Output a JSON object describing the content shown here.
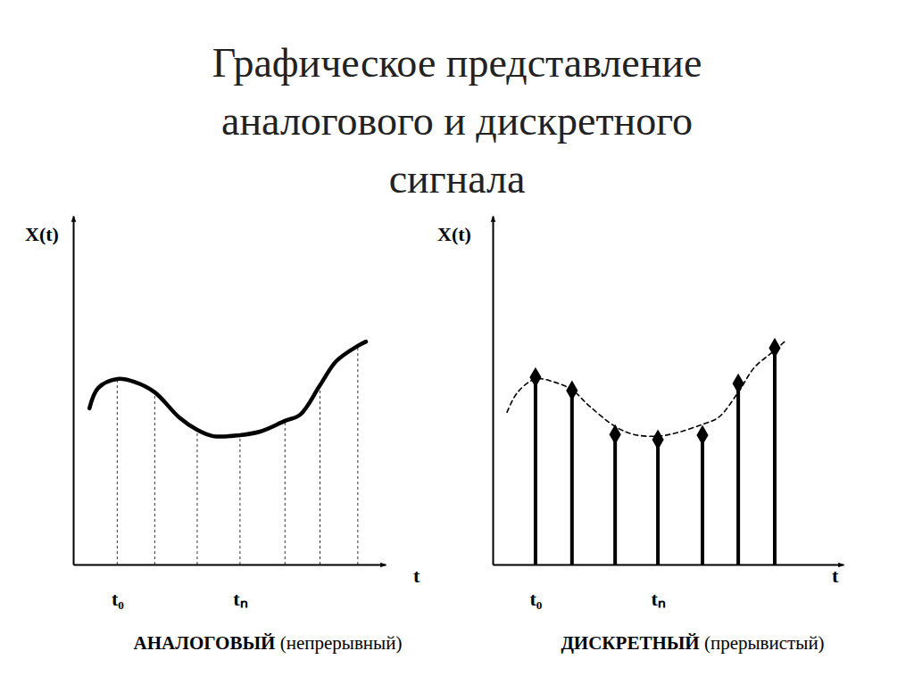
{
  "title": [
    "Графическое представление",
    "аналогового и дискретного",
    "сигнала"
  ],
  "chart_data": [
    {
      "type": "line",
      "x_label": "t",
      "y_label": "X(t)",
      "caption": "АНАЛОГОВЫЙ (непрерывный)",
      "xlim": [
        0,
        100
      ],
      "ylim": [
        0,
        100
      ],
      "xticks": [
        {
          "value": 14.1,
          "label": "t₀"
        },
        {
          "value": 53.4,
          "label": "tₙ"
        }
      ],
      "tick_labels": "x",
      "series": [
        {
          "type": "line",
          "line_style": "solid",
          "x": [
            5.2,
            8.0,
            14.1,
            19.5,
            26.1,
            33.9,
            39.7,
            44.8,
            53.4,
            59.8,
            67.8,
            72.7,
            79.0,
            84.2,
            91.1,
            93.7
          ],
          "values": [
            44.8,
            50.6,
            53.2,
            52.4,
            49.4,
            42.2,
            38.6,
            36.8,
            37.1,
            38.1,
            41.2,
            43.0,
            51.4,
            58.3,
            62.7,
            63.9
          ]
        },
        {
          "type": "stem",
          "line_style": "dashed",
          "marker": "none",
          "x": [
            14.1,
            26.1,
            39.7,
            53.4,
            67.8,
            79.0,
            91.1
          ],
          "values": [
            53.2,
            49.4,
            38.6,
            37.1,
            41.2,
            51.4,
            62.7
          ]
        }
      ]
    },
    {
      "type": "stem",
      "x_label": "t",
      "y_label": "X(t)",
      "caption": "ДИСКРЕТНЫЙ (прерывистый)",
      "xlim": [
        0,
        100
      ],
      "ylim": [
        0,
        100
      ],
      "xticks": [
        {
          "value": 12.2,
          "label": "t₀"
        },
        {
          "value": 47.1,
          "label": "tₙ"
        }
      ],
      "tick_labels": "x",
      "series": [
        {
          "type": "line",
          "line_style": "dashed",
          "x": [
            4.1,
            7.1,
            12.2,
            17.3,
            22.6,
            27.5,
            34.9,
            40.2,
            47.1,
            52.9,
            59.8,
            64.4,
            70.0,
            74.6,
            80.4,
            83.5
          ],
          "values": [
            43.7,
            49.4,
            53.2,
            52.4,
            50.1,
            45.5,
            39.6,
            37.3,
            36.8,
            37.9,
            40.2,
            42.2,
            49.4,
            56.5,
            61.4,
            64.2
          ]
        },
        {
          "type": "stem",
          "line_style": "solid",
          "marker": "diamond",
          "x": [
            12.2,
            22.6,
            34.9,
            47.1,
            59.8,
            70.0,
            80.4
          ],
          "values": [
            53.7,
            49.9,
            37.3,
            35.8,
            37.1,
            51.9,
            62.1
          ]
        }
      ]
    }
  ]
}
